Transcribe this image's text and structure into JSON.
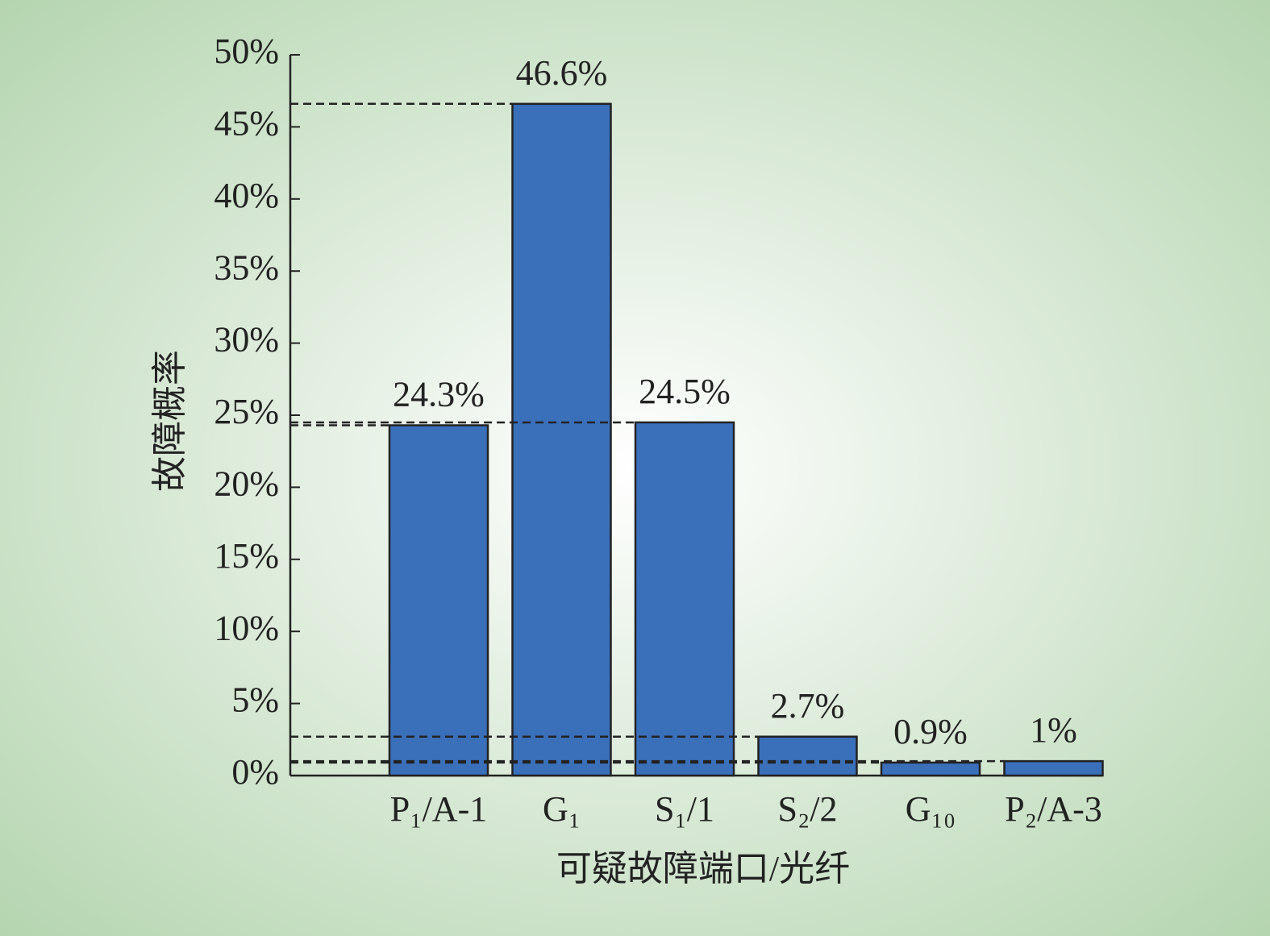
{
  "chart_data": {
    "type": "bar",
    "x_label": "可疑故障端口/光纤",
    "y_label": "故障概率",
    "categories": [
      null,
      "P₁/A-1",
      "G₁",
      "S₁/1",
      "S₂/2",
      "G₁₀",
      "P₂/A-3"
    ],
    "values": [
      null,
      24.3,
      46.6,
      24.5,
      2.7,
      0.9,
      1
    ],
    "value_labels": [
      null,
      "24.3%",
      "46.6%",
      "24.5%",
      "2.7%",
      "0.9%",
      "1%"
    ],
    "color": "#3a6fba",
    "ylim": [
      0,
      50
    ],
    "yticks": [
      {
        "value": 0,
        "label": "0%"
      },
      {
        "value": 5,
        "label": "5%"
      },
      {
        "value": 10,
        "label": "10%"
      },
      {
        "value": 15,
        "label": "15%"
      },
      {
        "value": 20,
        "label": "20%"
      },
      {
        "value": 25,
        "label": "25%"
      },
      {
        "value": 30,
        "label": "30%"
      },
      {
        "value": 35,
        "label": "35%"
      },
      {
        "value": 40,
        "label": "40%"
      },
      {
        "value": 45,
        "label": "45%"
      },
      {
        "value": 50,
        "label": "50%"
      }
    ],
    "reference_lines": true
  }
}
